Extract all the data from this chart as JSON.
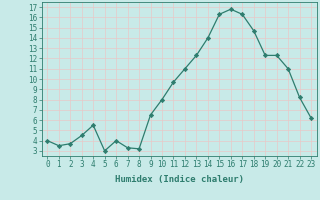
{
  "x": [
    0,
    1,
    2,
    3,
    4,
    5,
    6,
    7,
    8,
    9,
    10,
    11,
    12,
    13,
    14,
    15,
    16,
    17,
    18,
    19,
    20,
    21,
    22,
    23
  ],
  "y": [
    4.0,
    3.5,
    3.7,
    4.5,
    5.5,
    3.0,
    4.0,
    3.3,
    3.2,
    6.5,
    8.0,
    9.7,
    11.0,
    12.3,
    14.0,
    16.3,
    16.8,
    16.3,
    14.7,
    12.3,
    12.3,
    11.0,
    8.2,
    6.2
  ],
  "line_color": "#2e7d6e",
  "marker": "D",
  "marker_size": 2.2,
  "bg_color": "#c8eae8",
  "grid_color": "#e8c8c8",
  "xlabel": "Humidex (Indice chaleur)",
  "ylabel_ticks": [
    3,
    4,
    5,
    6,
    7,
    8,
    9,
    10,
    11,
    12,
    13,
    14,
    15,
    16,
    17
  ],
  "ylim": [
    2.5,
    17.5
  ],
  "xlim": [
    -0.5,
    23.5
  ],
  "xticks": [
    0,
    1,
    2,
    3,
    4,
    5,
    6,
    7,
    8,
    9,
    10,
    11,
    12,
    13,
    14,
    15,
    16,
    17,
    18,
    19,
    20,
    21,
    22,
    23
  ],
  "label_fontsize": 6.5,
  "tick_fontsize": 5.5
}
